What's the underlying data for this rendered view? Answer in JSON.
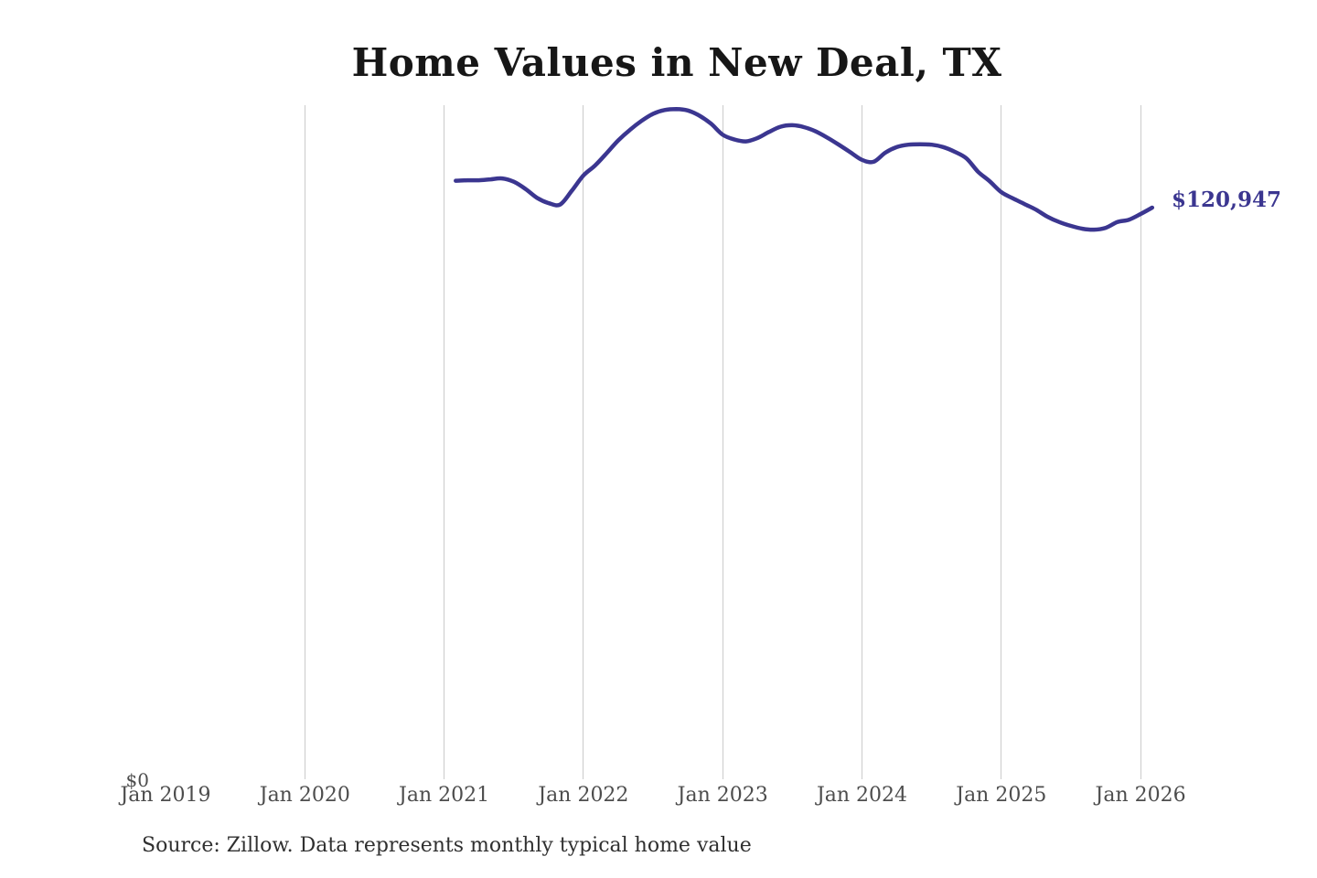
{
  "title": "Home Values in New Deal, TX",
  "source_note": "Source: Zillow. Data represents monthly typical home value",
  "current_value_label": "$120,947",
  "y_axis": {
    "zero_label": "$0"
  },
  "x_axis": {
    "ticks": [
      {
        "label": "Jan 2019",
        "gridline": false
      },
      {
        "label": "Jan 2020",
        "gridline": true
      },
      {
        "label": "Jan 2021",
        "gridline": true
      },
      {
        "label": "Jan 2022",
        "gridline": true
      },
      {
        "label": "Jan 2023",
        "gridline": true
      },
      {
        "label": "Jan 2024",
        "gridline": true
      },
      {
        "label": "Jan 2025",
        "gridline": true
      },
      {
        "label": "Jan 2026",
        "gridline": true
      }
    ]
  },
  "colors": {
    "line": "#3b3690",
    "value_label": "#3b3690",
    "gridline": "#cbcbcb",
    "axis_label": "#4d4d4d",
    "title": "#171717",
    "source": "#303030"
  },
  "chart_data": {
    "type": "line",
    "title": "Home Values in New Deal, TX",
    "series_name": "Monthly typical home value",
    "unit": "USD",
    "xlabel": "",
    "ylabel": "",
    "ylim": [
      0,
      142500
    ],
    "x_axis_range": [
      "Jan 2019",
      "Jan 2026"
    ],
    "grid": "vertical-yearly",
    "legend": "none",
    "end_annotation": "$120,947",
    "x": [
      "2021-01",
      "2021-02",
      "2021-03",
      "2021-04",
      "2021-05",
      "2021-06",
      "2021-07",
      "2021-08",
      "2021-09",
      "2021-10",
      "2021-11",
      "2021-12",
      "2022-01",
      "2022-02",
      "2022-03",
      "2022-04",
      "2022-05",
      "2022-06",
      "2022-07",
      "2022-08",
      "2022-09",
      "2022-10",
      "2022-11",
      "2022-12",
      "2023-01",
      "2023-02",
      "2023-03",
      "2023-04",
      "2023-05",
      "2023-06",
      "2023-07",
      "2023-08",
      "2023-09",
      "2023-10",
      "2023-11",
      "2023-12",
      "2024-01",
      "2024-02",
      "2024-03",
      "2024-04",
      "2024-05",
      "2024-06",
      "2024-07",
      "2024-08",
      "2024-09",
      "2024-10",
      "2024-11",
      "2024-12",
      "2025-01",
      "2025-02",
      "2025-03",
      "2025-04",
      "2025-05",
      "2025-06",
      "2025-07",
      "2025-08",
      "2025-09",
      "2025-10",
      "2025-11",
      "2025-12",
      "2026-01"
    ],
    "values": [
      126600,
      126700,
      126700,
      126900,
      127100,
      126400,
      124900,
      123000,
      121900,
      121600,
      124500,
      127700,
      129800,
      132400,
      135100,
      137300,
      139200,
      140700,
      141500,
      141700,
      141400,
      140300,
      138600,
      136300,
      135300,
      134900,
      135600,
      136900,
      138000,
      138300,
      137900,
      137000,
      135700,
      134200,
      132600,
      131000,
      130600,
      132500,
      133700,
      134200,
      134300,
      134200,
      133700,
      132700,
      131300,
      128500,
      126500,
      124200,
      122900,
      121700,
      120500,
      119000,
      117900,
      117100,
      116500,
      116300,
      116700,
      117900,
      118400,
      119600,
      120947
    ]
  }
}
